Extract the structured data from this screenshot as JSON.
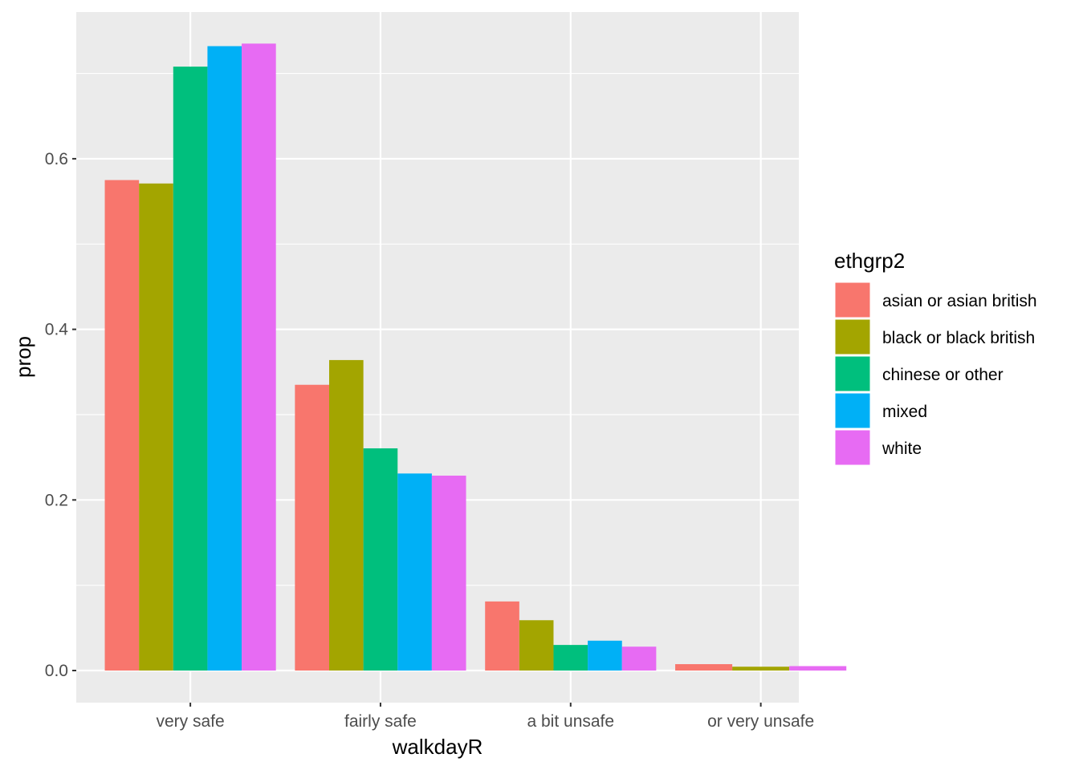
{
  "chart_data": {
    "type": "bar",
    "title": "",
    "xlabel": "walkdayR",
    "ylabel": "prop",
    "categories": [
      "very safe",
      "fairly safe",
      "a bit unsafe",
      "or very unsafe"
    ],
    "yticks": [
      0.0,
      0.2,
      0.4,
      0.6
    ],
    "ytick_labels": [
      "0.0",
      "0.2",
      "0.4",
      "0.6"
    ],
    "ylim": [
      -0.0376,
      0.772
    ],
    "grid": true,
    "legend": {
      "title": "ethgrp2",
      "position": "right"
    },
    "series": [
      {
        "name": "asian or asian british",
        "color": "#F8766D",
        "values": [
          0.575,
          0.335,
          0.081,
          0.0075
        ]
      },
      {
        "name": "black or black british",
        "color": "#A3A500",
        "values": [
          0.571,
          0.364,
          0.059,
          0.0045
        ]
      },
      {
        "name": "chinese or other",
        "color": "#00BF7D",
        "values": [
          0.708,
          0.2605,
          0.03,
          null
        ]
      },
      {
        "name": "mixed",
        "color": "#00B0F6",
        "values": [
          0.732,
          0.231,
          0.035,
          null
        ]
      },
      {
        "name": "white",
        "color": "#E76BF3",
        "values": [
          0.735,
          0.2285,
          0.028,
          0.0052
        ]
      }
    ]
  }
}
